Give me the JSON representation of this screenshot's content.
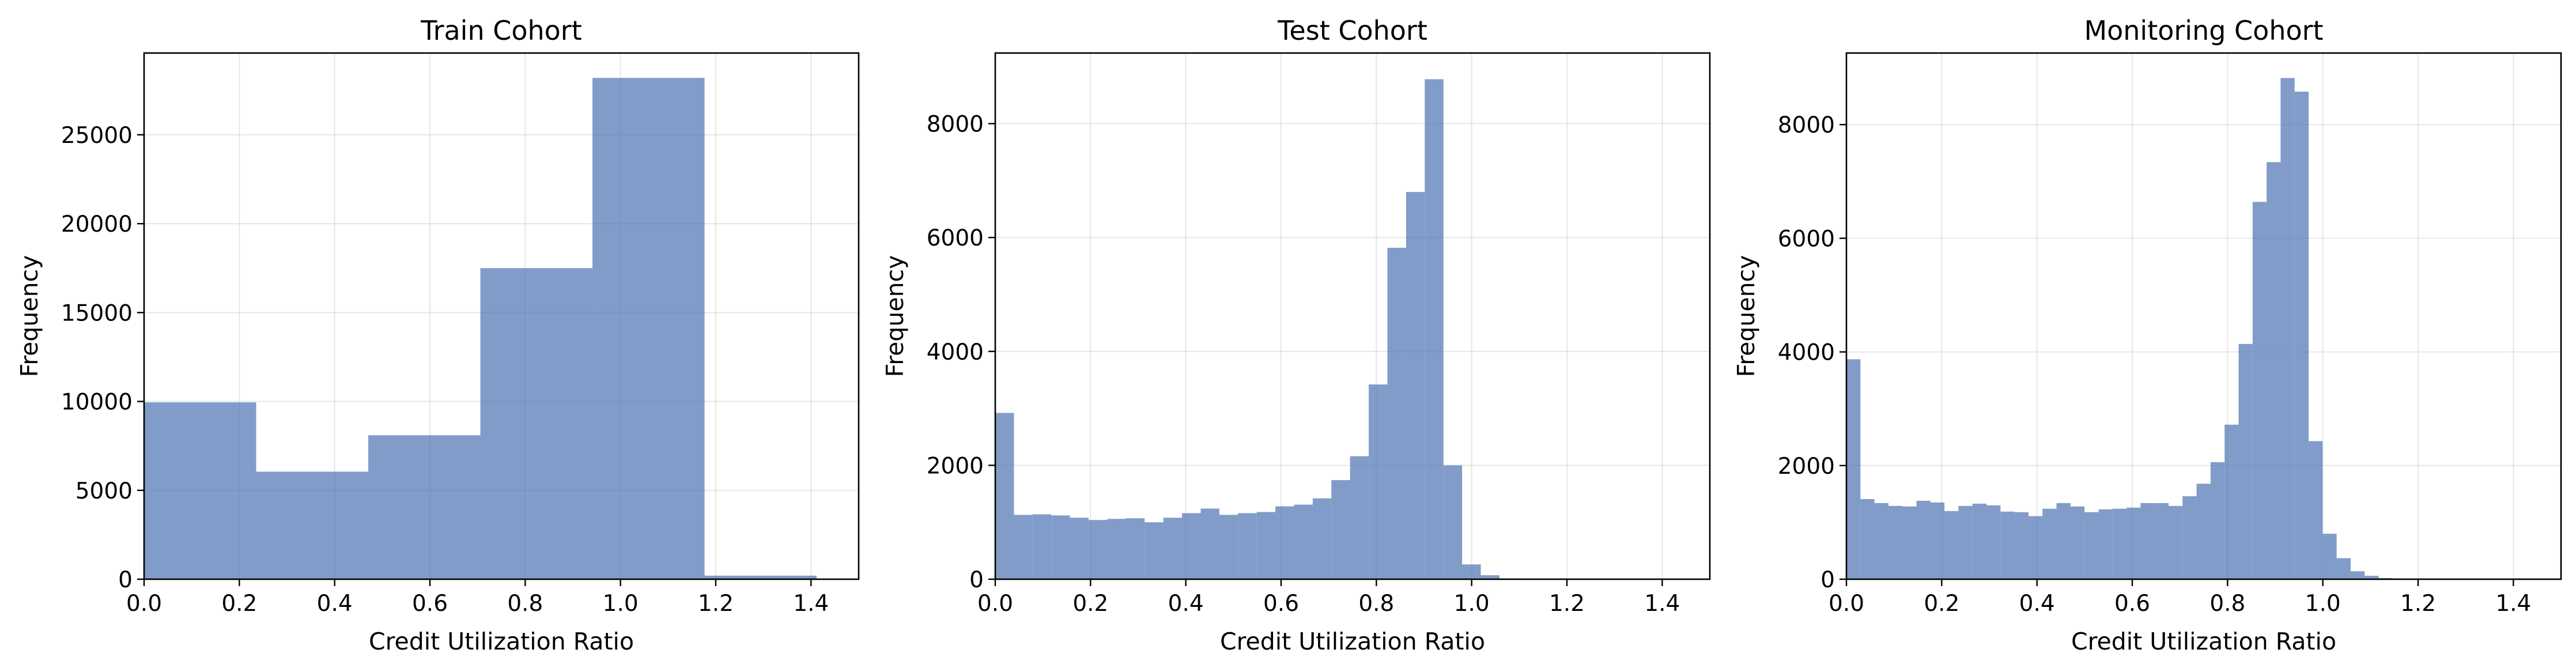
{
  "chart_data": [
    {
      "type": "histogram",
      "title": "Train Cohort",
      "xlabel": "Credit Utilization Ratio",
      "ylabel": "Frequency",
      "xlim": [
        0.0,
        1.5
      ],
      "ylim": [
        0,
        29600
      ],
      "xticks": [
        "0.0",
        "0.2",
        "0.4",
        "0.6",
        "0.8",
        "1.0",
        "1.2",
        "1.4"
      ],
      "yticks": [
        "0",
        "5000",
        "10000",
        "15000",
        "20000",
        "25000"
      ],
      "grid": true,
      "bar_color": "#4c72b0",
      "bin_start": 0.0,
      "bin_width": 0.2353,
      "values": [
        9950,
        6050,
        8100,
        17500,
        28200,
        200
      ]
    },
    {
      "type": "histogram",
      "title": "Test Cohort",
      "xlabel": "Credit Utilization Ratio",
      "ylabel": "Frequency",
      "xlim": [
        0.0,
        1.5
      ],
      "ylim": [
        0,
        9240
      ],
      "xticks": [
        "0.0",
        "0.2",
        "0.4",
        "0.6",
        "0.8",
        "1.0",
        "1.2",
        "1.4"
      ],
      "yticks": [
        "0",
        "2000",
        "4000",
        "6000",
        "8000"
      ],
      "grid": true,
      "bar_color": "#4c72b0",
      "bin_start": 0.0,
      "bin_width": 0.0392,
      "values": [
        2920,
        1130,
        1140,
        1120,
        1080,
        1040,
        1060,
        1070,
        1000,
        1080,
        1160,
        1240,
        1130,
        1160,
        1180,
        1280,
        1310,
        1420,
        1740,
        2160,
        3420,
        5820,
        6800,
        8780,
        2000,
        260,
        70,
        15,
        5,
        5,
        5,
        3,
        2,
        2,
        1,
        1,
        1
      ]
    },
    {
      "type": "histogram",
      "title": "Monitoring Cohort",
      "xlabel": "Credit Utilization Ratio",
      "ylabel": "Frequency",
      "xlim": [
        0.0,
        1.5
      ],
      "ylim": [
        0,
        9260
      ],
      "xticks": [
        "0.0",
        "0.2",
        "0.4",
        "0.6",
        "0.8",
        "1.0",
        "1.2",
        "1.4"
      ],
      "yticks": [
        "0",
        "2000",
        "4000",
        "6000",
        "8000"
      ],
      "grid": true,
      "bar_color": "#4c72b0",
      "bin_start": 0.0,
      "bin_width": 0.0294,
      "values": [
        3870,
        1410,
        1340,
        1290,
        1280,
        1380,
        1350,
        1200,
        1290,
        1330,
        1300,
        1190,
        1180,
        1110,
        1240,
        1340,
        1280,
        1180,
        1230,
        1240,
        1260,
        1340,
        1340,
        1290,
        1460,
        1680,
        2060,
        2720,
        4140,
        6640,
        7340,
        8820,
        8580,
        2430,
        800,
        370,
        140,
        60,
        20,
        10,
        5,
        3,
        2,
        1,
        1,
        1
      ]
    }
  ]
}
